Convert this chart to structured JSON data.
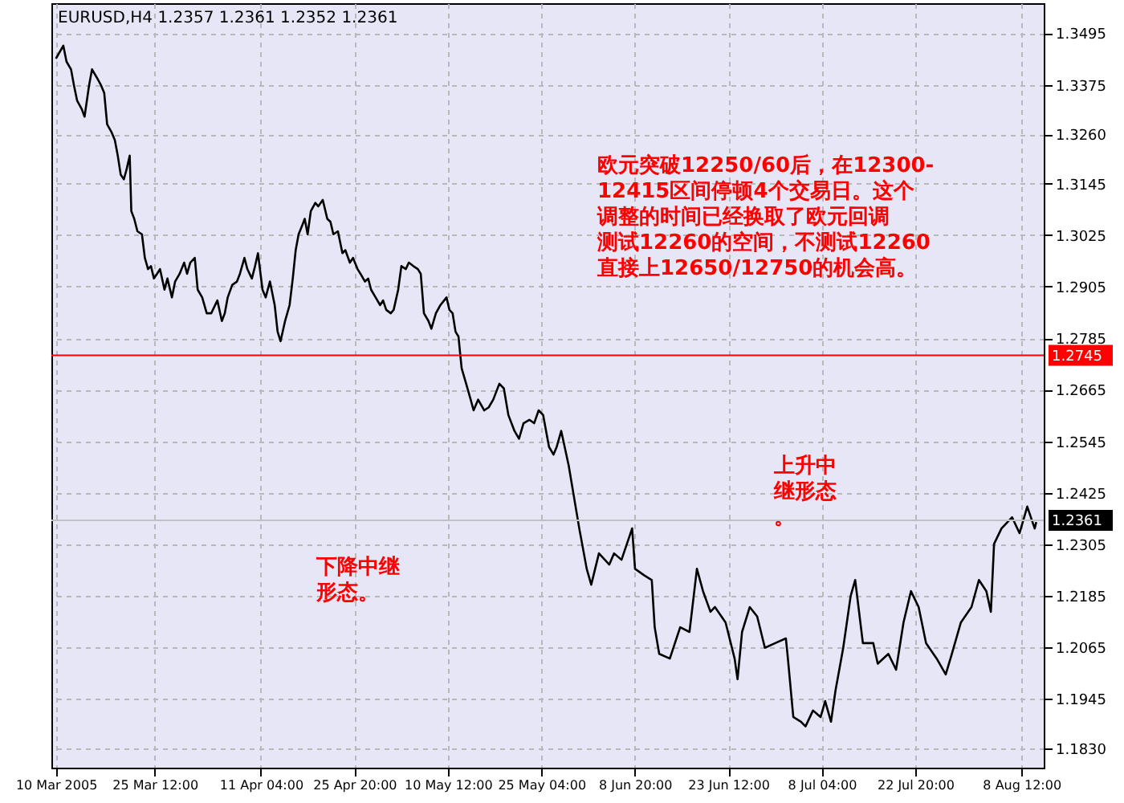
{
  "chart_data": {
    "type": "line",
    "title": "EURUSD,H4  1.2357 1.2361 1.2352 1.2361",
    "x": [
      "2005-03-10T00:00",
      "2005-03-11T04:00",
      "2005-03-11T16:00",
      "2005-03-12T09:00",
      "2005-03-12T20:00",
      "2005-03-13T08:00",
      "2005-03-14T01:00",
      "2005-03-14T12:00",
      "2005-03-15T05:00",
      "2005-03-15T16:00",
      "2005-03-16T09:00",
      "2005-03-17T02:00",
      "2005-03-17T14:00",
      "2005-03-18T01:00",
      "2005-03-18T18:00",
      "2005-03-19T06:00",
      "2005-03-19T17:00",
      "2005-03-20T04:00",
      "2005-03-20T16:00",
      "2005-03-21T03:00",
      "2005-03-21T14:00",
      "2005-03-21T20:00",
      "2005-03-22T07:00",
      "2005-03-22T19:00",
      "2005-03-23T12:00",
      "2005-03-23T23:00",
      "2005-03-24T11:00",
      "2005-03-24T22:00",
      "2005-03-25T09:00",
      "2005-03-25T21:00",
      "2005-03-26T08:00",
      "2005-03-27T01:00",
      "2005-03-27T12:00",
      "2005-03-28T05:00",
      "2005-03-28T17:00",
      "2005-03-29T10:00",
      "2005-03-30T03:00",
      "2005-03-30T14:00",
      "2005-03-31T02:00",
      "2005-03-31T19:00",
      "2005-04-01T06:00",
      "2005-04-01T23:00",
      "2005-04-02T16:00",
      "2005-04-03T09:00",
      "2005-04-04T08:00",
      "2005-04-05T01:00",
      "2005-04-05T12:00",
      "2005-04-05T23:00",
      "2005-04-06T16:00",
      "2005-04-07T10:00",
      "2005-04-07T21:00",
      "2005-04-08T14:00",
      "2005-04-09T01:00",
      "2005-04-09T18:00",
      "2005-04-10T06:00",
      "2005-04-10T17:00",
      "2005-04-11T10:00",
      "2005-04-11T22:00",
      "2005-04-12T14:00",
      "2005-04-13T08:00",
      "2005-04-13T19:00",
      "2005-04-14T06:00",
      "2005-04-14T23:00",
      "2005-04-15T16:00",
      "2005-04-16T04:00",
      "2005-04-16T15:00",
      "2005-04-17T02:00",
      "2005-04-17T14:00",
      "2005-04-18T01:00",
      "2005-04-18T12:00",
      "2005-04-19T00:00",
      "2005-04-19T17:00",
      "2005-04-20T04:00",
      "2005-04-20T21:00",
      "2005-04-21T14:00",
      "2005-04-22T02:00",
      "2005-04-22T13:00",
      "2005-04-23T06:00",
      "2005-04-23T23:00",
      "2005-04-24T10:00",
      "2005-04-25T03:00",
      "2005-04-25T15:00",
      "2005-04-26T08:00",
      "2005-04-26T19:00",
      "2005-04-27T12:00",
      "2005-04-28T00:00",
      "2005-04-28T11:00",
      "2005-04-29T04:00",
      "2005-04-29T21:00",
      "2005-04-30T08:00",
      "2005-04-30T20:00",
      "2005-05-01T13:00",
      "2005-05-02T00:00",
      "2005-05-02T17:00",
      "2005-05-03T05:00",
      "2005-05-03T22:00",
      "2005-05-04T09:00",
      "2005-05-05T02:00",
      "2005-05-05T19:00",
      "2005-05-06T06:00",
      "2005-05-06T18:00",
      "2005-05-07T11:00",
      "2005-05-07T22:00",
      "2005-05-08T15:00",
      "2005-05-09T08:00",
      "2005-05-10T07:00",
      "2005-05-10T18:00",
      "2005-05-11T06:00",
      "2005-05-11T17:00",
      "2005-05-12T04:00",
      "2005-05-12T16:00",
      "2005-05-13T09:00",
      "2005-05-14T02:00",
      "2005-05-14T13:00",
      "2005-05-15T06:00",
      "2005-05-16T05:00",
      "2005-05-16T22:00",
      "2005-05-17T15:00",
      "2005-05-18T14:00",
      "2005-05-19T07:00",
      "2005-05-20T00:00",
      "2005-05-20T23:00",
      "2005-05-21T16:00",
      "2005-05-22T09:00",
      "2005-05-23T07:00",
      "2005-05-24T01:00",
      "2005-05-24T18:00",
      "2005-05-25T11:00",
      "2005-05-26T09:00",
      "2005-05-27T02:00",
      "2005-05-27T14:00",
      "2005-05-28T07:00",
      "2005-05-29T11:00",
      "2005-05-31T03:00",
      "2005-06-01T07:00",
      "2005-06-02T00:00",
      "2005-06-03T05:00",
      "2005-06-04T20:00",
      "2005-06-05T14:00",
      "2005-06-06T18:00",
      "2005-06-07T22:00",
      "2005-06-08T10:00",
      "2005-06-08T21:00",
      "2005-06-10T07:00",
      "2005-06-11T12:00",
      "2005-06-11T23:00",
      "2005-06-12T16:00",
      "2005-06-14T08:00",
      "2005-06-15T23:00",
      "2005-06-17T10:00",
      "2005-06-18T14:00",
      "2005-06-19T13:00",
      "2005-06-20T17:00",
      "2005-06-21T10:00",
      "2005-06-23T02:00",
      "2005-06-24T12:00",
      "2005-06-24T23:00",
      "2005-06-25T16:00",
      "2005-06-26T21:00",
      "2005-06-28T01:00",
      "2005-06-29T06:00",
      "2005-06-30T21:00",
      "2005-07-02T13:00",
      "2005-07-02T19:00",
      "2005-07-03T17:00",
      "2005-07-04T22:00",
      "2005-07-05T15:00",
      "2005-07-06T19:00",
      "2005-07-08T00:00",
      "2005-07-08T17:00",
      "2005-07-09T15:00",
      "2005-07-10T08:00",
      "2005-07-11T13:00",
      "2005-07-12T17:00",
      "2005-07-13T10:00",
      "2005-07-14T15:00",
      "2005-07-16T06:00",
      "2005-07-16T23:00",
      "2005-07-18T15:00",
      "2005-07-19T20:00",
      "2005-07-21T00:00",
      "2005-07-22T04:00",
      "2005-07-23T09:00",
      "2005-07-24T13:00",
      "2005-07-26T05:00",
      "2005-07-27T15:00",
      "2005-07-28T14:00",
      "2005-07-30T00:00",
      "2005-07-31T16:00",
      "2005-08-01T20:00",
      "2005-08-03T00:00",
      "2005-08-03T17:00",
      "2005-08-04T05:00",
      "2005-08-05T09:00",
      "2005-08-07T01:00",
      "2005-08-08T05:00",
      "2005-08-09T10:00",
      "2005-08-10T14:00",
      "2005-08-10T20:00"
    ],
    "series": [
      {
        "color": "#000000",
        "values": [
          1.3436,
          1.3466,
          1.3429,
          1.3411,
          1.3374,
          1.3338,
          1.3319,
          1.3301,
          1.3374,
          1.3411,
          1.3393,
          1.3374,
          1.3356,
          1.3283,
          1.3264,
          1.3246,
          1.321,
          1.3166,
          1.3155,
          1.318,
          1.321,
          1.3081,
          1.3063,
          1.3034,
          1.3027,
          1.2972,
          1.2946,
          1.2953,
          1.2924,
          1.2935,
          1.2946,
          1.2898,
          1.2924,
          1.288,
          1.2917,
          1.2935,
          1.2961,
          1.2935,
          1.2961,
          1.2972,
          1.2898,
          1.288,
          1.2843,
          1.2843,
          1.2873,
          1.2825,
          1.2843,
          1.288,
          1.2909,
          1.2917,
          1.2935,
          1.2972,
          1.2946,
          1.2924,
          1.2953,
          1.2983,
          1.2898,
          1.288,
          1.2917,
          1.2862,
          1.28,
          1.2778,
          1.2825,
          1.2862,
          1.2924,
          1.299,
          1.3027,
          1.3045,
          1.3063,
          1.3027,
          1.3081,
          1.31,
          1.3092,
          1.3107,
          1.3063,
          1.3056,
          1.3027,
          1.3034,
          1.2983,
          1.299,
          1.2961,
          1.2972,
          1.2946,
          1.2935,
          1.2917,
          1.2924,
          1.2898,
          1.288,
          1.2862,
          1.2873,
          1.2851,
          1.2843,
          1.2851,
          1.2898,
          1.2953,
          1.2946,
          1.2961,
          1.2953,
          1.2946,
          1.2935,
          1.2843,
          1.2825,
          1.2807,
          1.2843,
          1.2862,
          1.288,
          1.2851,
          1.2843,
          1.28,
          1.2789,
          1.2715,
          1.2679,
          1.2642,
          1.2617,
          1.2642,
          1.2617,
          1.2624,
          1.2642,
          1.2679,
          1.2668,
          1.2606,
          1.2569,
          1.2551,
          1.2587,
          1.2595,
          1.2587,
          1.2617,
          1.2606,
          1.2532,
          1.2514,
          1.2532,
          1.2569,
          1.2489,
          1.2342,
          1.2248,
          1.2211,
          1.2284,
          1.2258,
          1.2284,
          1.2269,
          1.232,
          1.2342,
          1.2248,
          1.2233,
          1.2222,
          1.2112,
          1.205,
          1.2039,
          1.2112,
          1.2101,
          1.2248,
          1.2196,
          1.2148,
          1.2159,
          1.2123,
          1.2039,
          1.1991,
          1.2101,
          1.2159,
          1.2137,
          1.2064,
          1.2075,
          1.2086,
          1.205,
          1.1903,
          1.1892,
          1.1881,
          1.1918,
          1.1903,
          1.194,
          1.1892,
          1.1965,
          1.2064,
          1.2185,
          1.2222,
          1.2075,
          1.2075,
          1.2027,
          1.205,
          1.2013,
          1.2123,
          1.2196,
          1.2159,
          1.2075,
          1.2039,
          1.2002,
          1.205,
          1.2123,
          1.2159,
          1.2222,
          1.2196,
          1.2148,
          1.2306,
          1.2342,
          1.2368,
          1.2331,
          1.2393,
          1.2342,
          1.2357
        ]
      }
    ],
    "xlim": [
      "2005-03-09T07:00",
      "2005-08-12T00:00"
    ],
    "ylim": [
      1.1785,
      1.3565
    ],
    "xticks": [
      {
        "value": "2005-03-10T00:00",
        "label": "10 Mar 2005"
      },
      {
        "value": "2005-03-25T12:00",
        "label": "25 Mar 12:00"
      },
      {
        "value": "2005-04-11T04:00",
        "label": "11 Apr 04:00"
      },
      {
        "value": "2005-04-25T20:00",
        "label": "25 Apr 20:00"
      },
      {
        "value": "2005-05-10T12:00",
        "label": "10 May 12:00"
      },
      {
        "value": "2005-05-25T04:00",
        "label": "25 May 04:00"
      },
      {
        "value": "2005-06-08T20:00",
        "label": "8 Jun 20:00"
      },
      {
        "value": "2005-06-23T12:00",
        "label": "23 Jun 12:00"
      },
      {
        "value": "2005-07-08T04:00",
        "label": "8 Jul 04:00"
      },
      {
        "value": "2005-07-22T20:00",
        "label": "22 Jul 20:00"
      },
      {
        "value": "2005-08-08T12:00",
        "label": "8 Aug 12:00"
      }
    ],
    "yticks": [
      1.3495,
      1.3375,
      {
        "value": 1.326,
        "label": "1.3260"
      },
      1.3145,
      1.3025,
      1.2905,
      1.2785,
      1.2665,
      1.2545,
      1.2425,
      1.2305,
      1.2185,
      1.2065,
      1.1945,
      {
        "value": 1.183,
        "label": "1.1830"
      }
    ],
    "grid": true,
    "line_style": "solid",
    "marker": "none",
    "ref_lines": [
      {
        "axis": "y",
        "value": 1.2745,
        "label": "1.2745",
        "color": "#ff0000"
      },
      {
        "axis": "y",
        "value": 1.2361,
        "label": "1.2361",
        "color": "#c0c0c0"
      }
    ],
    "annotations": [
      "欧元突破12250/60后，在12300-12415区间停顿4个交易日。这个调整的时间已经换取了欧元回调测试12260的空间，不测试12260直接上12650/12750的机会高。",
      "下降中继形态。",
      "上升中继形态。"
    ]
  }
}
